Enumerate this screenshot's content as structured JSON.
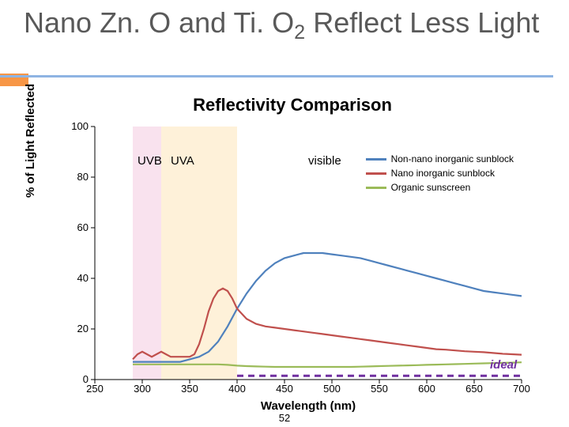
{
  "slide": {
    "title_html": "Nano Zn. O and Ti. O<sub>2</sub> Reflect Less Light",
    "page_number": "52"
  },
  "chart": {
    "type": "line",
    "title": "Reflectivity Comparison",
    "xlabel": "Wavelength (nm)",
    "ylabel": "% of Light Reflected",
    "xlim": [
      250,
      700
    ],
    "ylim": [
      0,
      100
    ],
    "xticks": [
      250,
      300,
      350,
      400,
      450,
      500,
      550,
      600,
      650,
      700
    ],
    "yticks": [
      0,
      20,
      40,
      60,
      80,
      100
    ],
    "background": "#ffffff",
    "axis_color": "#000000",
    "bands": [
      {
        "label": "UVB",
        "from": 290,
        "to": 320,
        "color": "#f4c6dd"
      },
      {
        "label": "UVA",
        "from": 320,
        "to": 400,
        "color": "#fde4b4"
      }
    ],
    "region_labels": [
      {
        "text": "UVB",
        "x": 295
      },
      {
        "text": "UVA",
        "x": 330
      },
      {
        "text": "visible",
        "x": 475
      }
    ],
    "legend": {
      "items": [
        {
          "label": "Non-nano inorganic sunblock",
          "color": "#4f81bd"
        },
        {
          "label": "Nano inorganic sunblock",
          "color": "#c0504d"
        },
        {
          "label": "Organic sunscreen",
          "color": "#9bbb59"
        }
      ]
    },
    "ideal": {
      "label": "ideal",
      "color": "#7030a0",
      "y": 1.5,
      "from": 400,
      "to": 700,
      "dash": "8,6",
      "width": 3
    },
    "series": [
      {
        "name": "Non-nano inorganic sunblock",
        "color": "#4f81bd",
        "width": 2.2,
        "points": [
          [
            290,
            7
          ],
          [
            300,
            7
          ],
          [
            310,
            7
          ],
          [
            320,
            7
          ],
          [
            330,
            7
          ],
          [
            340,
            7
          ],
          [
            350,
            8
          ],
          [
            360,
            9
          ],
          [
            370,
            11
          ],
          [
            380,
            15
          ],
          [
            390,
            21
          ],
          [
            400,
            28
          ],
          [
            410,
            34
          ],
          [
            420,
            39
          ],
          [
            430,
            43
          ],
          [
            440,
            46
          ],
          [
            450,
            48
          ],
          [
            460,
            49
          ],
          [
            470,
            50
          ],
          [
            480,
            50
          ],
          [
            490,
            50
          ],
          [
            500,
            49.5
          ],
          [
            510,
            49
          ],
          [
            520,
            48.5
          ],
          [
            530,
            48
          ],
          [
            540,
            47
          ],
          [
            550,
            46
          ],
          [
            560,
            45
          ],
          [
            570,
            44
          ],
          [
            580,
            43
          ],
          [
            590,
            42
          ],
          [
            600,
            41
          ],
          [
            610,
            40
          ],
          [
            620,
            39
          ],
          [
            630,
            38
          ],
          [
            640,
            37
          ],
          [
            650,
            36
          ],
          [
            660,
            35
          ],
          [
            670,
            34.5
          ],
          [
            680,
            34
          ],
          [
            690,
            33.5
          ],
          [
            700,
            33
          ]
        ]
      },
      {
        "name": "Nano inorganic sunblock",
        "color": "#c0504d",
        "width": 2.2,
        "points": [
          [
            290,
            8
          ],
          [
            295,
            10
          ],
          [
            300,
            11
          ],
          [
            305,
            10
          ],
          [
            310,
            9
          ],
          [
            315,
            10
          ],
          [
            320,
            11
          ],
          [
            325,
            10
          ],
          [
            330,
            9
          ],
          [
            335,
            9
          ],
          [
            340,
            9
          ],
          [
            345,
            9
          ],
          [
            350,
            9
          ],
          [
            355,
            10
          ],
          [
            360,
            14
          ],
          [
            365,
            20
          ],
          [
            370,
            27
          ],
          [
            375,
            32
          ],
          [
            380,
            35
          ],
          [
            385,
            36
          ],
          [
            390,
            35
          ],
          [
            395,
            32
          ],
          [
            400,
            28
          ],
          [
            410,
            24
          ],
          [
            420,
            22
          ],
          [
            430,
            21
          ],
          [
            440,
            20.5
          ],
          [
            450,
            20
          ],
          [
            460,
            19.5
          ],
          [
            470,
            19
          ],
          [
            480,
            18.5
          ],
          [
            490,
            18
          ],
          [
            500,
            17.5
          ],
          [
            510,
            17
          ],
          [
            520,
            16.5
          ],
          [
            530,
            16
          ],
          [
            540,
            15.5
          ],
          [
            550,
            15
          ],
          [
            560,
            14.5
          ],
          [
            570,
            14
          ],
          [
            580,
            13.5
          ],
          [
            590,
            13
          ],
          [
            600,
            12.5
          ],
          [
            610,
            12
          ],
          [
            620,
            11.8
          ],
          [
            630,
            11.5
          ],
          [
            640,
            11.2
          ],
          [
            650,
            11
          ],
          [
            660,
            10.8
          ],
          [
            670,
            10.5
          ],
          [
            680,
            10.2
          ],
          [
            690,
            10
          ],
          [
            700,
            9.8
          ]
        ]
      },
      {
        "name": "Organic sunscreen",
        "color": "#9bbb59",
        "width": 2.2,
        "points": [
          [
            290,
            6
          ],
          [
            300,
            6
          ],
          [
            310,
            6
          ],
          [
            320,
            6
          ],
          [
            330,
            6
          ],
          [
            340,
            6
          ],
          [
            350,
            6
          ],
          [
            360,
            6
          ],
          [
            370,
            6
          ],
          [
            380,
            6
          ],
          [
            390,
            5.8
          ],
          [
            400,
            5.5
          ],
          [
            410,
            5.3
          ],
          [
            420,
            5.2
          ],
          [
            430,
            5.1
          ],
          [
            440,
            5
          ],
          [
            450,
            5
          ],
          [
            460,
            5
          ],
          [
            470,
            5
          ],
          [
            480,
            5
          ],
          [
            490,
            5
          ],
          [
            500,
            5
          ],
          [
            510,
            5
          ],
          [
            520,
            5
          ],
          [
            530,
            5.1
          ],
          [
            540,
            5.2
          ],
          [
            550,
            5.3
          ],
          [
            560,
            5.4
          ],
          [
            570,
            5.5
          ],
          [
            580,
            5.6
          ],
          [
            590,
            5.7
          ],
          [
            600,
            5.8
          ],
          [
            610,
            5.9
          ],
          [
            620,
            6
          ],
          [
            630,
            6.1
          ],
          [
            640,
            6.2
          ],
          [
            650,
            6.3
          ],
          [
            660,
            6.4
          ],
          [
            670,
            6.5
          ],
          [
            680,
            6.6
          ],
          [
            690,
            6.7
          ],
          [
            700,
            6.8
          ]
        ]
      }
    ]
  },
  "colors": {
    "title_underline": "#8eb4e3",
    "accent_block": "#f79646",
    "slide_title": "#595959"
  }
}
